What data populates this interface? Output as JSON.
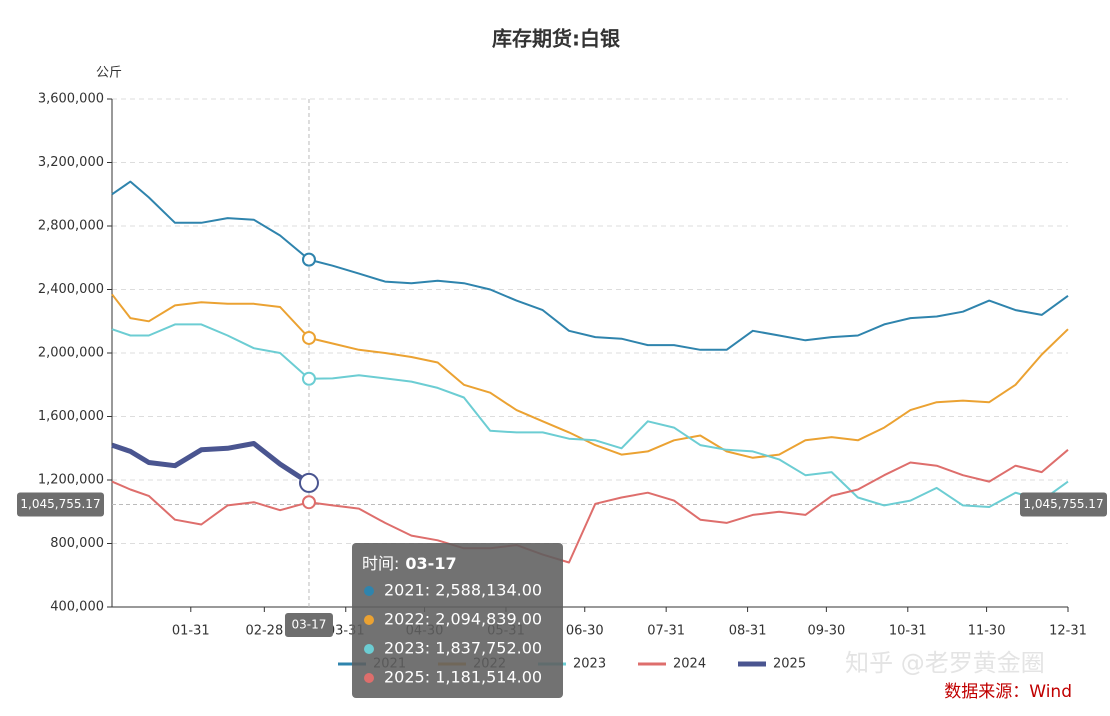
{
  "chart_data": {
    "type": "line",
    "title": "库存期货:白银",
    "y_unit": "公斤",
    "xlim": [
      1,
      365
    ],
    "xticks": [
      {
        "value": 31,
        "label": "01-31"
      },
      {
        "value": 59,
        "label": "02-28"
      },
      {
        "value": 90,
        "label": "03-31"
      },
      {
        "value": 120,
        "label": "04-30"
      },
      {
        "value": 151,
        "label": "05-31"
      },
      {
        "value": 181,
        "label": "06-30"
      },
      {
        "value": 212,
        "label": "07-31"
      },
      {
        "value": 243,
        "label": "08-31"
      },
      {
        "value": 273,
        "label": "09-30"
      },
      {
        "value": 304,
        "label": "10-31"
      },
      {
        "value": 334,
        "label": "11-30"
      },
      {
        "value": 365,
        "label": "12-31"
      }
    ],
    "ylim": [
      400000,
      3600000
    ],
    "yticks": [
      {
        "value": 400000,
        "label": "400,000"
      },
      {
        "value": 800000,
        "label": "800,000"
      },
      {
        "value": 1200000,
        "label": "1,200,000"
      },
      {
        "value": 1600000,
        "label": "1,600,000"
      },
      {
        "value": 2000000,
        "label": "2,000,000"
      },
      {
        "value": 2400000,
        "label": "2,400,000"
      },
      {
        "value": 2800000,
        "label": "2,800,000"
      },
      {
        "value": 3200000,
        "label": "3,200,000"
      },
      {
        "value": 3600000,
        "label": "3,600,000"
      }
    ],
    "grid": true,
    "x": [
      1,
      8,
      15,
      25,
      35,
      45,
      55,
      65,
      76,
      85,
      95,
      105,
      115,
      125,
      135,
      145,
      155,
      165,
      175,
      185,
      195,
      205,
      215,
      225,
      235,
      245,
      255,
      265,
      275,
      285,
      295,
      305,
      315,
      325,
      335,
      345,
      355,
      365
    ],
    "series": [
      {
        "name": "2021",
        "color": "#2f84ad",
        "width": 2,
        "values": [
          3000000,
          3080000,
          2980000,
          2820000,
          2820000,
          2850000,
          2840000,
          2740000,
          2588134,
          2550000,
          2500000,
          2450000,
          2440000,
          2455000,
          2440000,
          2400000,
          2330000,
          2270000,
          2140000,
          2100000,
          2090000,
          2050000,
          2050000,
          2020000,
          2020000,
          2140000,
          2110000,
          2080000,
          2100000,
          2110000,
          2180000,
          2220000,
          2230000,
          2260000,
          2330000,
          2270000,
          2240000,
          2360000
        ]
      },
      {
        "name": "2022",
        "color": "#eba232",
        "width": 2,
        "values": [
          2370000,
          2220000,
          2200000,
          2300000,
          2320000,
          2310000,
          2310000,
          2290000,
          2094839,
          2060000,
          2020000,
          2000000,
          1975000,
          1940000,
          1800000,
          1750000,
          1640000,
          1570000,
          1500000,
          1420000,
          1360000,
          1380000,
          1450000,
          1480000,
          1380000,
          1340000,
          1360000,
          1450000,
          1470000,
          1450000,
          1530000,
          1640000,
          1690000,
          1700000,
          1690000,
          1800000,
          1990000,
          2150000
        ]
      },
      {
        "name": "2023",
        "color": "#6ccdd3",
        "width": 2,
        "values": [
          2150000,
          2110000,
          2110000,
          2180000,
          2180000,
          2110000,
          2030000,
          2000000,
          1837752,
          1840000,
          1860000,
          1840000,
          1820000,
          1780000,
          1720000,
          1510000,
          1500000,
          1500000,
          1460000,
          1450000,
          1400000,
          1570000,
          1530000,
          1420000,
          1390000,
          1380000,
          1330000,
          1230000,
          1250000,
          1090000,
          1040000,
          1070000,
          1150000,
          1040000,
          1030000,
          1120000,
          1070000,
          1190000
        ]
      },
      {
        "name": "2024",
        "color": "#de6e6c",
        "width": 2,
        "values": [
          1190000,
          1140000,
          1100000,
          950000,
          920000,
          1040000,
          1060000,
          1010000,
          1060000,
          1040000,
          1020000,
          930000,
          850000,
          820000,
          770000,
          770000,
          790000,
          730000,
          680000,
          1050000,
          1090000,
          1120000,
          1070000,
          950000,
          930000,
          980000,
          1000000,
          980000,
          1100000,
          1140000,
          1230000,
          1310000,
          1290000,
          1230000,
          1190000,
          1290000,
          1250000,
          1390000
        ]
      },
      {
        "name": "2025",
        "color": "#4a5590",
        "width": 5,
        "values": [
          1420000,
          1380000,
          1310000,
          1290000,
          1390000,
          1400000,
          1430000,
          1300000,
          1181514,
          null,
          null,
          null,
          null,
          null,
          null,
          null,
          null,
          null,
          null,
          null,
          null,
          null,
          null,
          null,
          null,
          null,
          null,
          null,
          null,
          null,
          null,
          null,
          null,
          null,
          null,
          null,
          null,
          null
        ]
      }
    ],
    "pointer": {
      "x": {
        "value": 76,
        "label": "03-17"
      },
      "y": {
        "value": 1045755.17,
        "label": "1,045,755.17"
      }
    },
    "tooltip": {
      "title_label": "时间:",
      "title_value": "03-17",
      "rows": [
        "2021: 2,588,134.00",
        "2022: 2,094,839.00",
        "2023: 1,837,752.00",
        "2025: 1,181,514.00"
      ]
    },
    "watermark": "知乎 @老罗黄金圈",
    "source": "数据来源：Wind"
  }
}
